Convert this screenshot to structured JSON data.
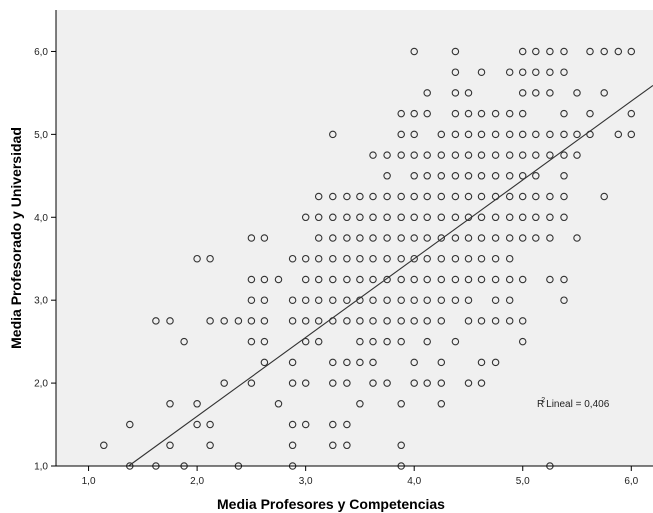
{
  "chart_data": {
    "type": "scatter",
    "xlabel": "Media Profesores y Competencias",
    "ylabel": "Media Profesorado y Universidad",
    "xlim": [
      0.7,
      6.2
    ],
    "ylim": [
      1.0,
      6.5
    ],
    "x_ticks": [
      "1,0",
      "2,0",
      "3,0",
      "4,0",
      "5,0",
      "6,0"
    ],
    "y_ticks": [
      "1,0",
      "2,0",
      "3,0",
      "4,0",
      "5,0",
      "6,0"
    ],
    "x_tick_values": [
      1,
      2,
      3,
      4,
      5,
      6
    ],
    "y_tick_values": [
      1,
      2,
      3,
      4,
      5,
      6
    ],
    "grid": false,
    "background_color": "#f0f0f0",
    "marker_color": "#333333",
    "fit_line": {
      "intercept": -0.3,
      "slope": 0.95,
      "color": "#333333"
    },
    "annotation": {
      "prefix": "R",
      "superscript": "2",
      "text": "Lineal = 0,406",
      "x": 5.15,
      "y": 2.75
    },
    "points": [
      [
        1.14,
        1.25
      ],
      [
        1.38,
        1.5
      ],
      [
        1.38,
        1.0
      ],
      [
        1.62,
        1.0
      ],
      [
        1.75,
        1.25
      ],
      [
        1.75,
        1.75
      ],
      [
        1.88,
        1.0
      ],
      [
        2.0,
        1.5
      ],
      [
        2.0,
        1.75
      ],
      [
        2.12,
        1.25
      ],
      [
        2.12,
        1.5
      ],
      [
        2.38,
        1.0
      ],
      [
        1.62,
        2.75
      ],
      [
        1.75,
        2.75
      ],
      [
        1.88,
        2.5
      ],
      [
        2.0,
        3.5
      ],
      [
        2.12,
        3.5
      ],
      [
        2.12,
        2.75
      ],
      [
        2.25,
        2.75
      ],
      [
        2.25,
        2.0
      ],
      [
        2.38,
        2.75
      ],
      [
        2.5,
        2.75
      ],
      [
        2.5,
        2.0
      ],
      [
        2.5,
        3.75
      ],
      [
        2.62,
        3.75
      ],
      [
        2.5,
        3.25
      ],
      [
        2.5,
        3.0
      ],
      [
        2.5,
        2.5
      ],
      [
        2.62,
        3.25
      ],
      [
        2.62,
        3.0
      ],
      [
        2.62,
        2.75
      ],
      [
        2.62,
        2.5
      ],
      [
        2.62,
        2.25
      ],
      [
        2.75,
        3.25
      ],
      [
        2.75,
        1.75
      ],
      [
        2.88,
        3.0
      ],
      [
        2.88,
        2.75
      ],
      [
        2.88,
        2.25
      ],
      [
        2.88,
        2.0
      ],
      [
        2.88,
        1.5
      ],
      [
        2.88,
        1.25
      ],
      [
        3.0,
        3.0
      ],
      [
        3.0,
        2.75
      ],
      [
        3.0,
        2.0
      ],
      [
        3.0,
        1.5
      ],
      [
        2.88,
        1.0
      ],
      [
        2.88,
        3.5
      ],
      [
        3.0,
        3.5
      ],
      [
        3.0,
        4.0
      ],
      [
        3.0,
        3.25
      ],
      [
        3.0,
        2.5
      ],
      [
        3.12,
        4.25
      ],
      [
        3.12,
        4.0
      ],
      [
        3.12,
        3.75
      ],
      [
        3.12,
        3.5
      ],
      [
        3.12,
        3.25
      ],
      [
        3.12,
        3.0
      ],
      [
        3.12,
        2.75
      ],
      [
        3.12,
        2.5
      ],
      [
        3.25,
        4.25
      ],
      [
        3.25,
        4.0
      ],
      [
        3.25,
        3.75
      ],
      [
        3.25,
        3.5
      ],
      [
        3.25,
        3.25
      ],
      [
        3.25,
        3.0
      ],
      [
        3.25,
        2.75
      ],
      [
        3.25,
        2.25
      ],
      [
        3.25,
        2.0
      ],
      [
        3.25,
        1.5
      ],
      [
        3.25,
        1.25
      ],
      [
        3.25,
        5.0
      ],
      [
        3.38,
        4.25
      ],
      [
        3.38,
        4.0
      ],
      [
        3.38,
        3.75
      ],
      [
        3.38,
        3.5
      ],
      [
        3.38,
        3.25
      ],
      [
        3.38,
        3.0
      ],
      [
        3.38,
        2.75
      ],
      [
        3.38,
        2.25
      ],
      [
        3.38,
        2.0
      ],
      [
        3.38,
        1.5
      ],
      [
        3.38,
        1.25
      ],
      [
        3.5,
        4.25
      ],
      [
        3.5,
        4.0
      ],
      [
        3.5,
        3.75
      ],
      [
        3.5,
        3.5
      ],
      [
        3.5,
        3.25
      ],
      [
        3.5,
        3.0
      ],
      [
        3.5,
        2.75
      ],
      [
        3.5,
        2.5
      ],
      [
        3.5,
        2.25
      ],
      [
        3.5,
        1.75
      ],
      [
        3.62,
        4.75
      ],
      [
        3.62,
        4.25
      ],
      [
        3.62,
        4.0
      ],
      [
        3.62,
        3.75
      ],
      [
        3.62,
        3.5
      ],
      [
        3.62,
        3.25
      ],
      [
        3.62,
        3.0
      ],
      [
        3.62,
        2.75
      ],
      [
        3.62,
        2.5
      ],
      [
        3.62,
        2.25
      ],
      [
        3.62,
        2.0
      ],
      [
        3.75,
        4.75
      ],
      [
        3.75,
        4.5
      ],
      [
        3.75,
        4.25
      ],
      [
        3.75,
        4.0
      ],
      [
        3.75,
        3.75
      ],
      [
        3.75,
        3.5
      ],
      [
        3.75,
        3.25
      ],
      [
        3.75,
        3.0
      ],
      [
        3.75,
        2.75
      ],
      [
        3.75,
        2.5
      ],
      [
        3.75,
        2.0
      ],
      [
        3.88,
        5.25
      ],
      [
        3.88,
        5.0
      ],
      [
        3.88,
        4.75
      ],
      [
        3.88,
        4.25
      ],
      [
        3.88,
        4.0
      ],
      [
        3.88,
        3.75
      ],
      [
        3.88,
        3.5
      ],
      [
        3.88,
        3.25
      ],
      [
        3.88,
        3.0
      ],
      [
        3.88,
        2.75
      ],
      [
        3.88,
        2.5
      ],
      [
        3.88,
        1.75
      ],
      [
        3.88,
        1.25
      ],
      [
        3.88,
        1.0
      ],
      [
        4.0,
        4.75
      ],
      [
        4.0,
        4.5
      ],
      [
        4.0,
        4.25
      ],
      [
        4.0,
        4.0
      ],
      [
        4.0,
        3.75
      ],
      [
        4.0,
        3.5
      ],
      [
        4.0,
        3.25
      ],
      [
        4.0,
        3.0
      ],
      [
        4.0,
        2.75
      ],
      [
        4.0,
        2.25
      ],
      [
        4.0,
        2.0
      ],
      [
        4.0,
        6.0
      ],
      [
        4.0,
        5.25
      ],
      [
        4.0,
        5.0
      ],
      [
        4.12,
        5.25
      ],
      [
        4.12,
        4.75
      ],
      [
        4.12,
        4.5
      ],
      [
        4.12,
        4.25
      ],
      [
        4.12,
        4.0
      ],
      [
        4.12,
        3.75
      ],
      [
        4.12,
        3.5
      ],
      [
        4.12,
        3.25
      ],
      [
        4.12,
        3.0
      ],
      [
        4.12,
        2.75
      ],
      [
        4.12,
        2.5
      ],
      [
        4.12,
        2.0
      ],
      [
        4.12,
        5.5
      ],
      [
        4.25,
        5.0
      ],
      [
        4.25,
        4.75
      ],
      [
        4.25,
        4.5
      ],
      [
        4.25,
        4.25
      ],
      [
        4.25,
        4.0
      ],
      [
        4.25,
        3.75
      ],
      [
        4.25,
        3.5
      ],
      [
        4.25,
        3.25
      ],
      [
        4.25,
        3.0
      ],
      [
        4.25,
        2.75
      ],
      [
        4.25,
        2.25
      ],
      [
        4.25,
        2.0
      ],
      [
        4.25,
        1.75
      ],
      [
        4.38,
        6.0
      ],
      [
        4.38,
        5.75
      ],
      [
        4.38,
        5.5
      ],
      [
        4.38,
        5.25
      ],
      [
        4.38,
        5.0
      ],
      [
        4.38,
        4.75
      ],
      [
        4.38,
        4.5
      ],
      [
        4.38,
        4.25
      ],
      [
        4.38,
        4.0
      ],
      [
        4.38,
        3.75
      ],
      [
        4.38,
        3.5
      ],
      [
        4.38,
        3.25
      ],
      [
        4.38,
        3.0
      ],
      [
        4.38,
        2.5
      ],
      [
        4.5,
        5.5
      ],
      [
        4.5,
        5.25
      ],
      [
        4.5,
        5.0
      ],
      [
        4.5,
        4.75
      ],
      [
        4.5,
        4.5
      ],
      [
        4.5,
        4.25
      ],
      [
        4.5,
        4.0
      ],
      [
        4.5,
        3.75
      ],
      [
        4.5,
        3.5
      ],
      [
        4.5,
        3.25
      ],
      [
        4.5,
        3.0
      ],
      [
        4.5,
        2.75
      ],
      [
        4.5,
        2.0
      ],
      [
        4.62,
        5.75
      ],
      [
        4.62,
        5.25
      ],
      [
        4.62,
        5.0
      ],
      [
        4.62,
        4.75
      ],
      [
        4.62,
        4.5
      ],
      [
        4.62,
        4.25
      ],
      [
        4.62,
        4.0
      ],
      [
        4.62,
        3.75
      ],
      [
        4.62,
        3.5
      ],
      [
        4.62,
        3.25
      ],
      [
        4.62,
        2.75
      ],
      [
        4.62,
        2.25
      ],
      [
        4.62,
        2.0
      ],
      [
        4.75,
        5.25
      ],
      [
        4.75,
        5.0
      ],
      [
        4.75,
        4.75
      ],
      [
        4.75,
        4.5
      ],
      [
        4.75,
        4.25
      ],
      [
        4.75,
        4.0
      ],
      [
        4.75,
        3.75
      ],
      [
        4.75,
        3.5
      ],
      [
        4.75,
        3.25
      ],
      [
        4.75,
        3.0
      ],
      [
        4.75,
        2.75
      ],
      [
        4.75,
        2.25
      ],
      [
        4.88,
        5.75
      ],
      [
        4.88,
        5.25
      ],
      [
        4.88,
        5.0
      ],
      [
        4.88,
        4.75
      ],
      [
        4.88,
        4.5
      ],
      [
        4.88,
        4.25
      ],
      [
        4.88,
        4.0
      ],
      [
        4.88,
        3.75
      ],
      [
        4.88,
        3.5
      ],
      [
        4.88,
        3.25
      ],
      [
        4.88,
        3.0
      ],
      [
        4.88,
        2.75
      ],
      [
        5.0,
        6.0
      ],
      [
        5.0,
        5.75
      ],
      [
        5.0,
        5.5
      ],
      [
        5.0,
        5.25
      ],
      [
        5.0,
        5.0
      ],
      [
        5.0,
        4.75
      ],
      [
        5.0,
        4.5
      ],
      [
        5.0,
        4.25
      ],
      [
        5.0,
        4.0
      ],
      [
        5.0,
        3.75
      ],
      [
        5.0,
        3.25
      ],
      [
        5.0,
        2.75
      ],
      [
        5.0,
        2.5
      ],
      [
        5.12,
        6.0
      ],
      [
        5.12,
        5.75
      ],
      [
        5.12,
        5.5
      ],
      [
        5.12,
        5.0
      ],
      [
        5.12,
        4.75
      ],
      [
        5.12,
        4.5
      ],
      [
        5.12,
        4.25
      ],
      [
        5.12,
        4.0
      ],
      [
        5.12,
        3.75
      ],
      [
        5.25,
        6.0
      ],
      [
        5.25,
        5.75
      ],
      [
        5.25,
        5.5
      ],
      [
        5.25,
        5.0
      ],
      [
        5.25,
        4.75
      ],
      [
        5.25,
        4.25
      ],
      [
        5.25,
        4.0
      ],
      [
        5.25,
        3.75
      ],
      [
        5.25,
        3.25
      ],
      [
        5.25,
        1.0
      ],
      [
        5.38,
        6.0
      ],
      [
        5.38,
        5.75
      ],
      [
        5.38,
        5.25
      ],
      [
        5.38,
        5.0
      ],
      [
        5.38,
        4.75
      ],
      [
        5.38,
        4.5
      ],
      [
        5.38,
        4.25
      ],
      [
        5.38,
        4.0
      ],
      [
        5.38,
        3.25
      ],
      [
        5.38,
        3.0
      ],
      [
        5.5,
        5.5
      ],
      [
        5.5,
        5.0
      ],
      [
        5.5,
        4.75
      ],
      [
        5.5,
        3.75
      ],
      [
        5.62,
        6.0
      ],
      [
        5.62,
        5.0
      ],
      [
        5.62,
        5.25
      ],
      [
        5.75,
        5.5
      ],
      [
        5.75,
        6.0
      ],
      [
        5.75,
        4.25
      ],
      [
        5.88,
        6.0
      ],
      [
        5.88,
        5.0
      ],
      [
        6.0,
        6.0
      ],
      [
        6.0,
        5.25
      ],
      [
        6.0,
        5.0
      ]
    ]
  }
}
